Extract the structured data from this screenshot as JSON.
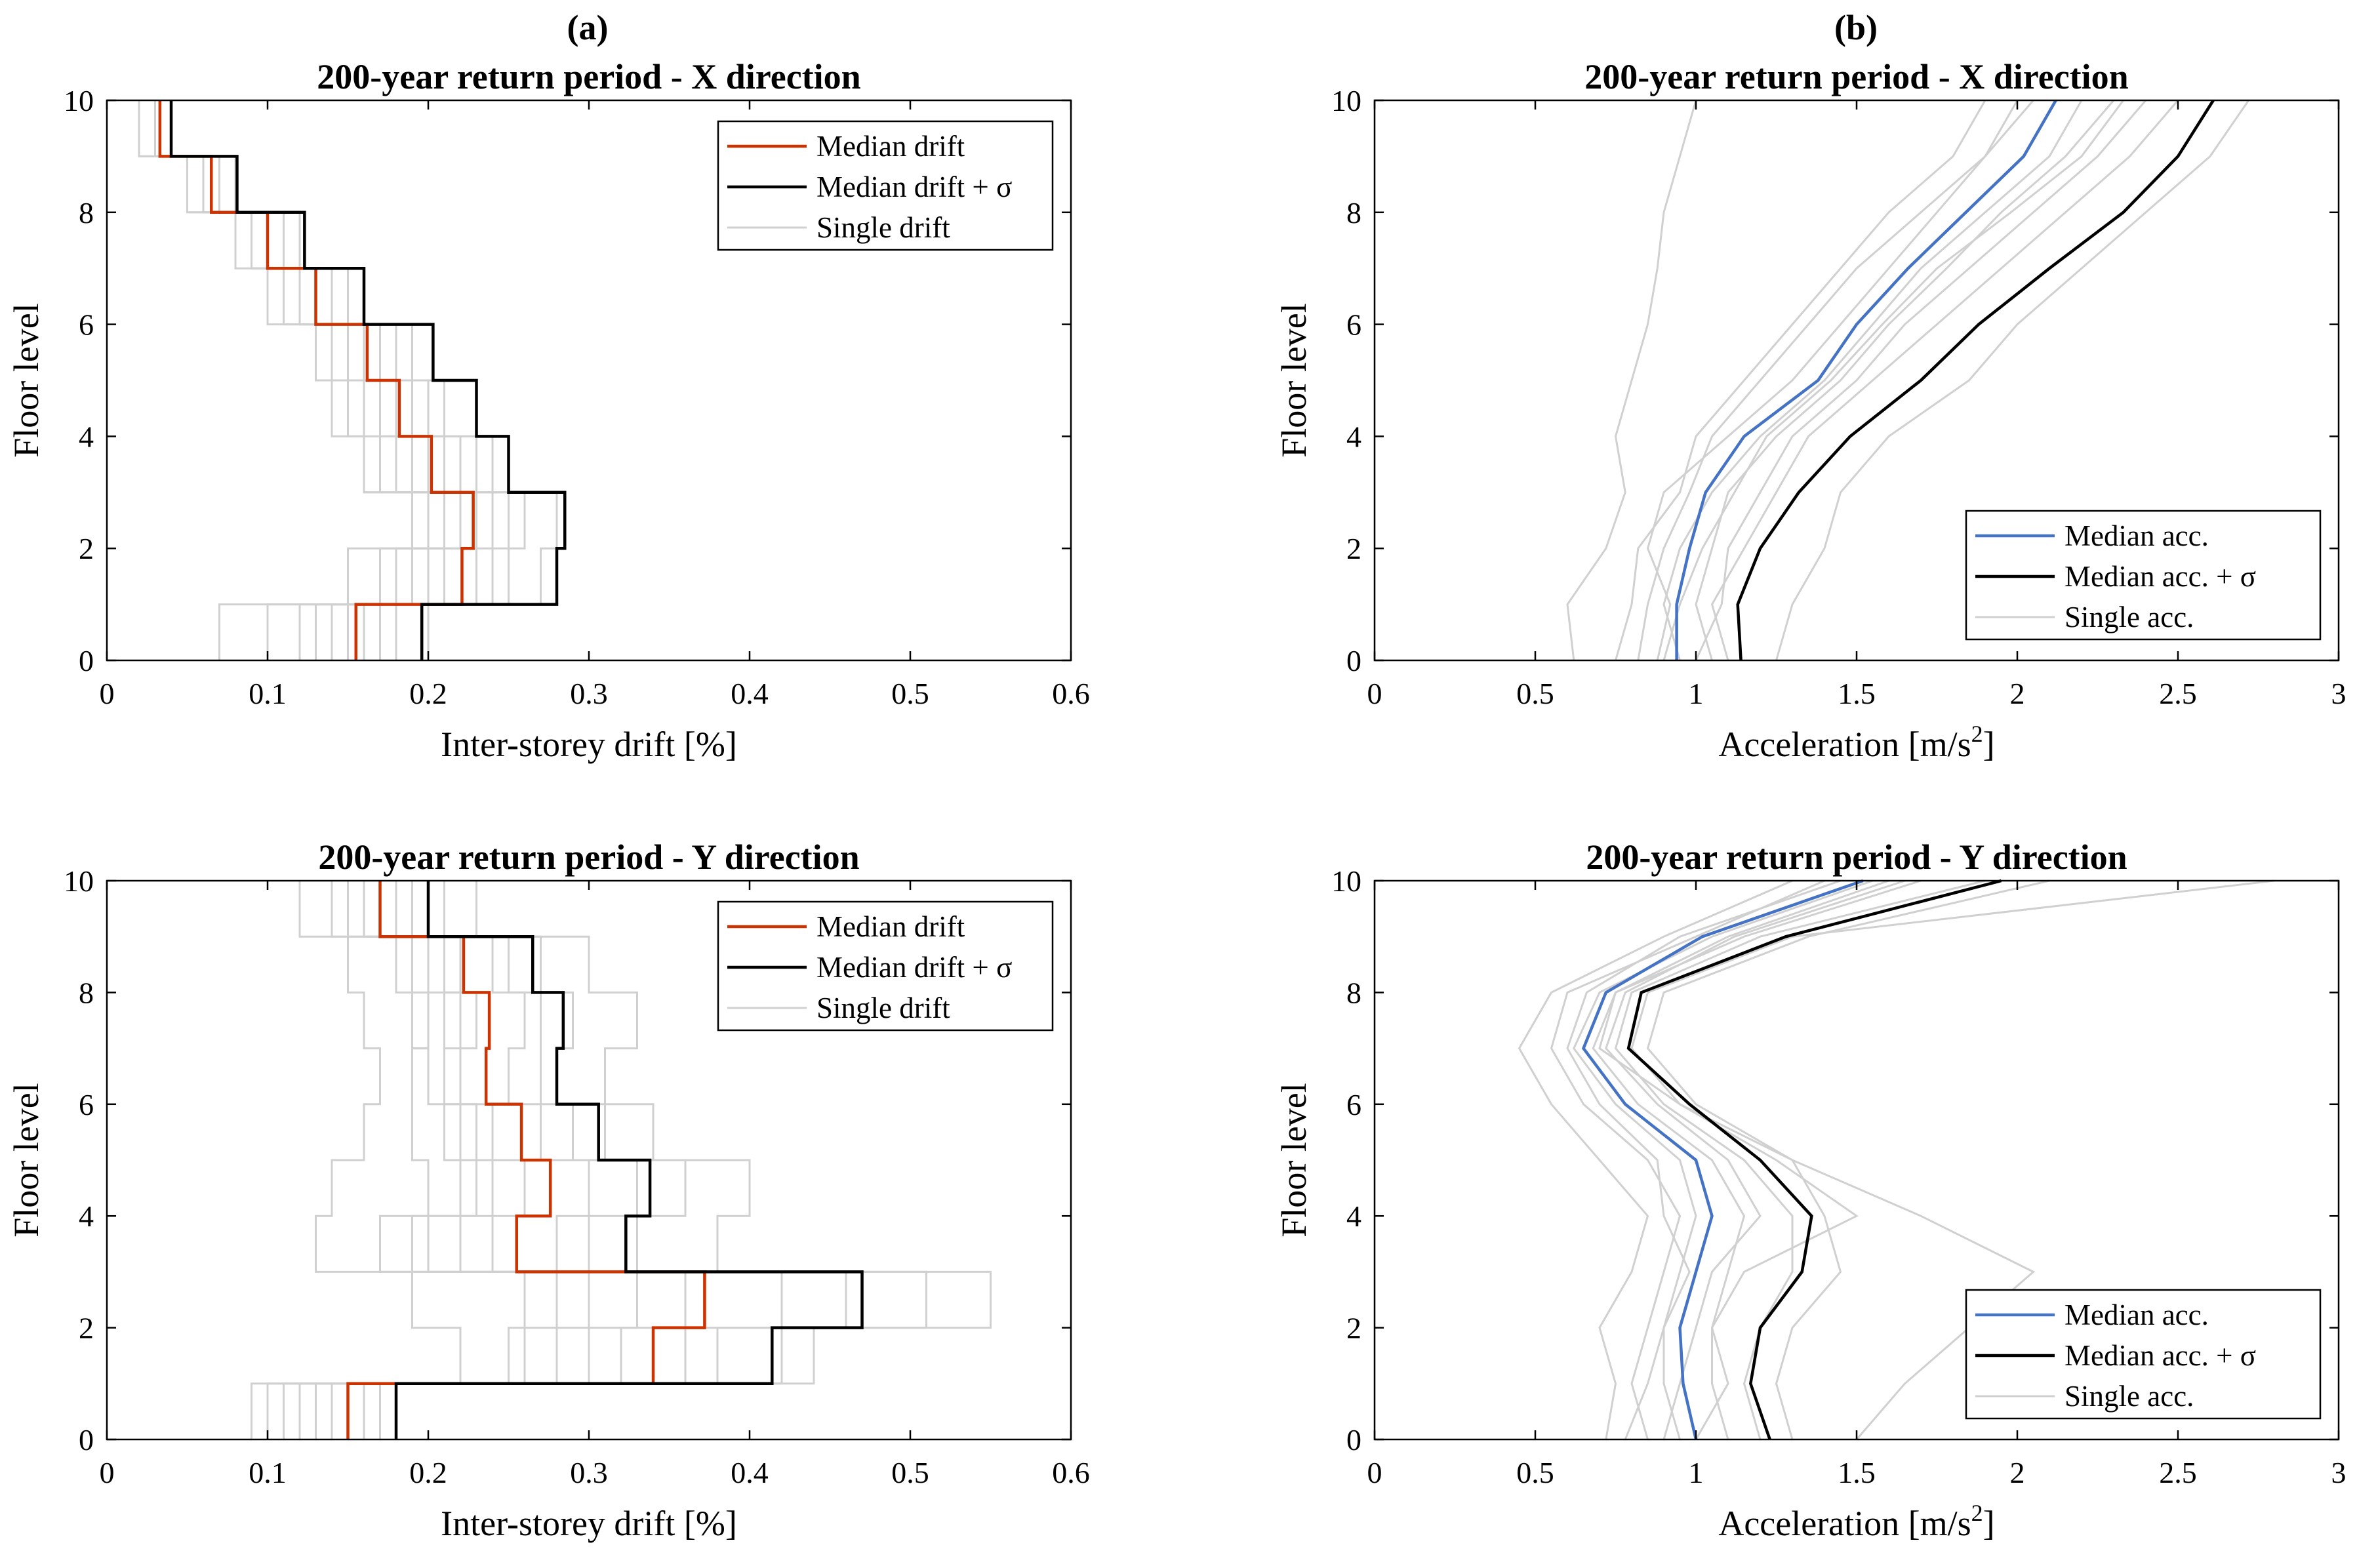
{
  "figure": {
    "panel_labels": [
      "(a)",
      "(b)"
    ]
  },
  "chart_data": [
    {
      "type": "line",
      "step": true,
      "title": "200-year return period - X direction",
      "xlabel": "Inter-storey drift [%]",
      "ylabel": "Floor level",
      "xlim": [
        0,
        0.6
      ],
      "ylim": [
        0,
        10
      ],
      "xticks": [
        "0",
        "0.1",
        "0.2",
        "0.3",
        "0.4",
        "0.5",
        "0.6"
      ],
      "yticks": [
        "0",
        "2",
        "4",
        "6",
        "8",
        "10"
      ],
      "legend_position": "top-right",
      "series": [
        {
          "name": "Median drift",
          "color": "#cc3300",
          "values": [
            0.155,
            0.221,
            0.228,
            0.202,
            0.182,
            0.162,
            0.13,
            0.1,
            0.065,
            0.033
          ]
        },
        {
          "name": "Median drift + σ",
          "color": "#000000",
          "values": [
            0.196,
            0.28,
            0.285,
            0.25,
            0.23,
            0.203,
            0.16,
            0.123,
            0.081,
            0.04
          ]
        }
      ],
      "singles": {
        "name": "Single drift",
        "color": "#d0d0d0",
        "values": [
          [
            0.07,
            0.15,
            0.2,
            0.16,
            0.14,
            0.13,
            0.1,
            0.08,
            0.05,
            0.02
          ],
          [
            0.12,
            0.18,
            0.21,
            0.17,
            0.16,
            0.15,
            0.12,
            0.09,
            0.06,
            0.03
          ],
          [
            0.14,
            0.2,
            0.22,
            0.19,
            0.17,
            0.15,
            0.12,
            0.1,
            0.06,
            0.03
          ],
          [
            0.16,
            0.23,
            0.24,
            0.21,
            0.19,
            0.17,
            0.14,
            0.11,
            0.07,
            0.04
          ],
          [
            0.18,
            0.25,
            0.26,
            0.23,
            0.2,
            0.18,
            0.15,
            0.11,
            0.08,
            0.04
          ],
          [
            0.1,
            0.17,
            0.19,
            0.16,
            0.15,
            0.14,
            0.11,
            0.09,
            0.05,
            0.02
          ],
          [
            0.2,
            0.27,
            0.28,
            0.24,
            0.21,
            0.19,
            0.15,
            0.12,
            0.08,
            0.04
          ],
          [
            0.15,
            0.21,
            0.23,
            0.2,
            0.18,
            0.16,
            0.13,
            0.1,
            0.07,
            0.03
          ],
          [
            0.13,
            0.19,
            0.21,
            0.18,
            0.17,
            0.15,
            0.12,
            0.09,
            0.06,
            0.03
          ],
          [
            0.17,
            0.24,
            0.25,
            0.22,
            0.2,
            0.17,
            0.14,
            0.1,
            0.07,
            0.04
          ]
        ]
      }
    },
    {
      "type": "line",
      "title": "200-year return period - X direction",
      "xlabel": "Acceleration [m/s",
      "xlabel_sup": "2",
      "xlabel_end": "]",
      "ylabel": "Floor level",
      "xlim": [
        0,
        3
      ],
      "ylim": [
        0,
        10
      ],
      "xticks": [
        "0",
        "0.5",
        "1",
        "1.5",
        "2",
        "2.5",
        "3"
      ],
      "yticks": [
        "0",
        "2",
        "4",
        "6",
        "8",
        "10"
      ],
      "legend_position": "bottom-right",
      "series": [
        {
          "name": "Median acc.",
          "color": "#4472c4",
          "levels": [
            0,
            1,
            2,
            3,
            4,
            5,
            6,
            7,
            8,
            9,
            10
          ],
          "values": [
            0.94,
            0.94,
            0.98,
            1.03,
            1.15,
            1.38,
            1.5,
            1.66,
            1.84,
            2.02,
            2.12
          ]
        },
        {
          "name": "Median acc. + σ",
          "color": "#000000",
          "levels": [
            0,
            1,
            2,
            3,
            4,
            5,
            6,
            7,
            8,
            9,
            10
          ],
          "values": [
            1.14,
            1.13,
            1.2,
            1.32,
            1.48,
            1.7,
            1.88,
            2.1,
            2.33,
            2.5,
            2.61
          ]
        }
      ],
      "singles": {
        "name": "Single acc.",
        "color": "#d0d0d0",
        "levels": [
          0,
          1,
          2,
          3,
          4,
          5,
          6,
          7,
          8,
          9,
          10
        ],
        "values": [
          [
            0.62,
            0.6,
            0.72,
            0.78,
            0.75,
            0.8,
            0.85,
            0.88,
            0.9,
            0.95,
            1.0
          ],
          [
            0.82,
            0.85,
            0.9,
            0.98,
            1.05,
            1.2,
            1.35,
            1.5,
            1.7,
            1.9,
            2.05
          ],
          [
            1.05,
            1.0,
            1.05,
            1.1,
            1.25,
            1.45,
            1.6,
            1.78,
            1.95,
            2.15,
            2.3
          ],
          [
            0.95,
            0.9,
            0.95,
            1.05,
            1.2,
            1.4,
            1.55,
            1.7,
            1.9,
            2.1,
            2.2
          ],
          [
            1.25,
            1.3,
            1.4,
            1.45,
            1.6,
            1.85,
            2.0,
            2.2,
            2.4,
            2.6,
            2.72
          ],
          [
            0.88,
            0.92,
            0.85,
            0.9,
            1.1,
            1.3,
            1.45,
            1.6,
            1.75,
            1.9,
            2.0
          ],
          [
            1.1,
            1.05,
            1.15,
            1.25,
            1.35,
            1.55,
            1.75,
            1.95,
            2.15,
            2.35,
            2.5
          ],
          [
            0.75,
            0.8,
            0.82,
            0.95,
            1.0,
            1.15,
            1.3,
            1.45,
            1.6,
            1.8,
            1.9
          ],
          [
            1.0,
            1.08,
            1.1,
            1.2,
            1.3,
            1.5,
            1.65,
            1.85,
            2.05,
            2.25,
            2.4
          ],
          [
            0.9,
            0.95,
            1.02,
            1.12,
            1.22,
            1.42,
            1.58,
            1.75,
            1.98,
            2.2,
            2.33
          ]
        ]
      }
    },
    {
      "type": "line",
      "step": true,
      "title": "200-year return period - Y direction",
      "xlabel": "Inter-storey drift [%]",
      "ylabel": "Floor level",
      "xlim": [
        0,
        0.6
      ],
      "ylim": [
        0,
        10
      ],
      "xticks": [
        "0",
        "0.1",
        "0.2",
        "0.3",
        "0.4",
        "0.5",
        "0.6"
      ],
      "yticks": [
        "0",
        "2",
        "4",
        "6",
        "8",
        "10"
      ],
      "legend_position": "top-right",
      "series": [
        {
          "name": "Median drift",
          "color": "#cc3300",
          "values": [
            0.15,
            0.34,
            0.372,
            0.255,
            0.276,
            0.258,
            0.236,
            0.238,
            0.222,
            0.17
          ]
        },
        {
          "name": "Median drift + σ",
          "color": "#000000",
          "values": [
            0.18,
            0.414,
            0.47,
            0.323,
            0.338,
            0.306,
            0.28,
            0.284,
            0.265,
            0.2
          ]
        }
      ],
      "singles": {
        "name": "Single drift",
        "color": "#d0d0d0",
        "values": [
          [
            0.09,
            0.22,
            0.19,
            0.13,
            0.14,
            0.16,
            0.17,
            0.16,
            0.15,
            0.12
          ],
          [
            0.12,
            0.28,
            0.3,
            0.2,
            0.22,
            0.21,
            0.2,
            0.19,
            0.18,
            0.14
          ],
          [
            0.14,
            0.32,
            0.36,
            0.24,
            0.26,
            0.24,
            0.22,
            0.23,
            0.21,
            0.16
          ],
          [
            0.16,
            0.36,
            0.42,
            0.28,
            0.3,
            0.27,
            0.25,
            0.26,
            0.24,
            0.19
          ],
          [
            0.18,
            0.42,
            0.51,
            0.33,
            0.36,
            0.31,
            0.28,
            0.29,
            0.27,
            0.21
          ],
          [
            0.1,
            0.25,
            0.26,
            0.17,
            0.2,
            0.19,
            0.19,
            0.2,
            0.19,
            0.15
          ],
          [
            0.17,
            0.44,
            0.55,
            0.38,
            0.4,
            0.34,
            0.31,
            0.33,
            0.3,
            0.23
          ],
          [
            0.13,
            0.3,
            0.33,
            0.22,
            0.24,
            0.23,
            0.21,
            0.22,
            0.2,
            0.17
          ],
          [
            0.15,
            0.38,
            0.46,
            0.3,
            0.33,
            0.29,
            0.27,
            0.27,
            0.25,
            0.18
          ],
          [
            0.11,
            0.26,
            0.28,
            0.19,
            0.23,
            0.22,
            0.21,
            0.21,
            0.22,
            0.2
          ]
        ]
      }
    },
    {
      "type": "line",
      "title": "200-year return period - Y direction",
      "xlabel": "Acceleration [m/s",
      "xlabel_sup": "2",
      "xlabel_end": "]",
      "ylabel": "Floor level",
      "xlim": [
        0,
        3
      ],
      "ylim": [
        0,
        10
      ],
      "xticks": [
        "0",
        "0.5",
        "1",
        "1.5",
        "2",
        "2.5",
        "3"
      ],
      "yticks": [
        "0",
        "2",
        "4",
        "6",
        "8",
        "10"
      ],
      "legend_position": "bottom-right",
      "series": [
        {
          "name": "Median acc.",
          "color": "#4472c4",
          "levels": [
            0,
            1,
            2,
            3,
            4,
            5,
            6,
            7,
            8,
            9,
            10
          ],
          "values": [
            1.0,
            0.96,
            0.95,
            1.0,
            1.05,
            1.0,
            0.78,
            0.65,
            0.72,
            1.02,
            1.52
          ]
        },
        {
          "name": "Median acc. + σ",
          "color": "#000000",
          "levels": [
            0,
            1,
            2,
            3,
            4,
            5,
            6,
            7,
            8,
            9,
            10
          ],
          "values": [
            1.23,
            1.17,
            1.2,
            1.33,
            1.36,
            1.2,
            0.98,
            0.79,
            0.83,
            1.28,
            1.95
          ]
        }
      ],
      "singles": {
        "name": "Single acc.",
        "color": "#d0d0d0",
        "levels": [
          0,
          1,
          2,
          3,
          4,
          5,
          6,
          7,
          8,
          9,
          10
        ],
        "values": [
          [
            0.72,
            0.75,
            0.7,
            0.8,
            0.85,
            0.7,
            0.55,
            0.45,
            0.55,
            0.9,
            1.3
          ],
          [
            1.5,
            1.65,
            1.85,
            2.05,
            1.7,
            1.3,
            0.95,
            0.8,
            0.85,
            1.3,
            2.8
          ],
          [
            0.85,
            0.8,
            0.85,
            0.9,
            0.95,
            0.85,
            0.65,
            0.55,
            0.6,
            1.0,
            1.4
          ],
          [
            1.2,
            1.15,
            1.2,
            1.3,
            1.3,
            1.15,
            0.9,
            0.75,
            0.8,
            1.2,
            1.9
          ],
          [
            0.95,
            0.9,
            0.9,
            0.95,
            1.0,
            0.95,
            0.75,
            0.62,
            0.7,
            1.05,
            1.55
          ],
          [
            1.1,
            1.05,
            1.05,
            1.15,
            1.5,
            1.25,
            0.95,
            0.7,
            0.75,
            1.15,
            1.7
          ],
          [
            0.78,
            0.85,
            0.9,
            0.98,
            0.9,
            0.88,
            0.7,
            0.6,
            0.66,
            0.95,
            1.45
          ],
          [
            1.3,
            1.25,
            1.3,
            1.45,
            1.4,
            1.3,
            1.0,
            0.85,
            0.9,
            1.35,
            2.1
          ],
          [
            1.0,
            1.1,
            1.05,
            1.1,
            1.15,
            1.05,
            0.82,
            0.68,
            0.75,
            1.1,
            1.6
          ],
          [
            0.9,
            0.95,
            1.0,
            1.05,
            1.2,
            1.1,
            0.88,
            0.72,
            0.78,
            1.12,
            1.65
          ]
        ]
      }
    }
  ]
}
